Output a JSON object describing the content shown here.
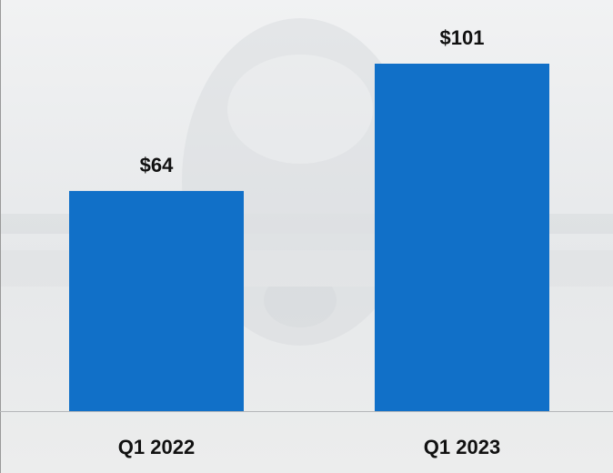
{
  "chart_data": {
    "type": "bar",
    "categories": [
      "Q1 2022",
      "Q1 2023"
    ],
    "values": [
      64,
      101
    ],
    "value_labels": [
      "$64",
      "$101"
    ],
    "color": "#1170c8"
  }
}
